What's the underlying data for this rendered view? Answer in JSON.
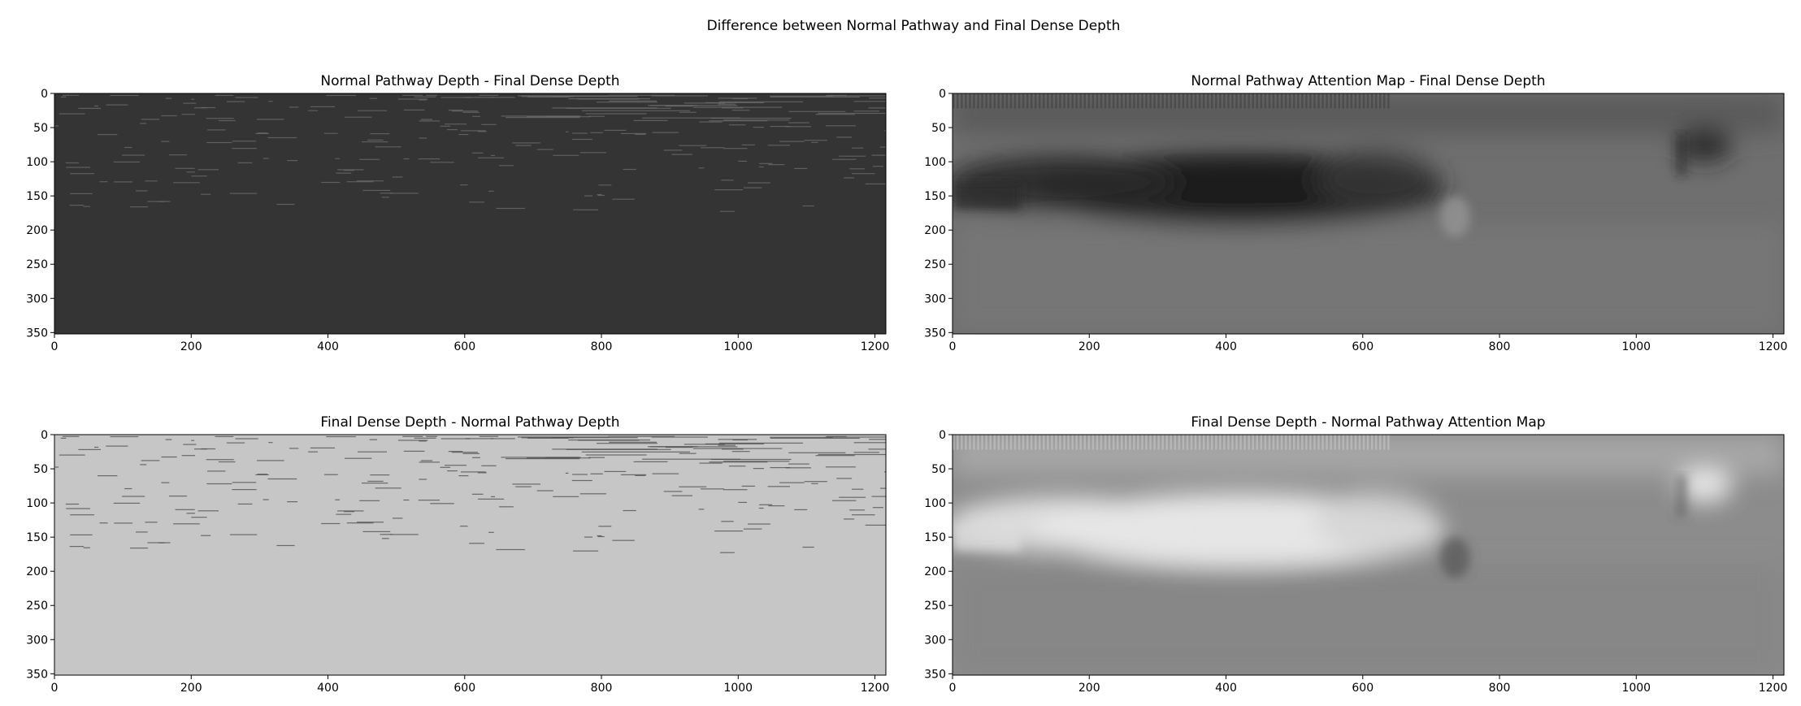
{
  "figure": {
    "suptitle": "Difference between Normal Pathway and Final Dense Depth"
  },
  "chart_data": [
    {
      "type": "heatmap",
      "title": "Normal Pathway Depth - Final Dense Depth",
      "colormap": "gray",
      "xlim": [
        0,
        1216
      ],
      "ylim": [
        352,
        0
      ],
      "xticks": [
        0,
        200,
        400,
        600,
        800,
        1000,
        1200
      ],
      "yticks": [
        0,
        50,
        100,
        150,
        200,
        250,
        300,
        350
      ],
      "base_color": "#343434",
      "speckle_color": "#6e6e6e",
      "pattern": "sparse-lines"
    },
    {
      "type": "heatmap",
      "title": "Normal Pathway Attention Map - Final Dense Depth",
      "colormap": "gray",
      "xlim": [
        0,
        1216
      ],
      "ylim": [
        352,
        0
      ],
      "xticks": [
        0,
        200,
        400,
        600,
        800,
        1000,
        1200
      ],
      "yticks": [
        0,
        50,
        100,
        150,
        200,
        250,
        300,
        350
      ],
      "base_color": "#6f6f6f",
      "dark_color": "#101010",
      "pattern": "scene-dark"
    },
    {
      "type": "heatmap",
      "title": "Final Dense Depth - Normal Pathway Depth",
      "colormap": "gray",
      "xlim": [
        0,
        1216
      ],
      "ylim": [
        352,
        0
      ],
      "xticks": [
        0,
        200,
        400,
        600,
        800,
        1000,
        1200
      ],
      "yticks": [
        0,
        50,
        100,
        150,
        200,
        250,
        300,
        350
      ],
      "base_color": "#c6c6c6",
      "speckle_color": "#4a4a4a",
      "pattern": "sparse-lines"
    },
    {
      "type": "heatmap",
      "title": "Final Dense Depth - Normal Pathway Attention Map",
      "colormap": "gray",
      "xlim": [
        0,
        1216
      ],
      "ylim": [
        352,
        0
      ],
      "xticks": [
        0,
        200,
        400,
        600,
        800,
        1000,
        1200
      ],
      "yticks": [
        0,
        50,
        100,
        150,
        200,
        250,
        300,
        350
      ],
      "base_color": "#8c8c8c",
      "bright_color": "#f6f6f6",
      "pattern": "scene-bright"
    }
  ]
}
